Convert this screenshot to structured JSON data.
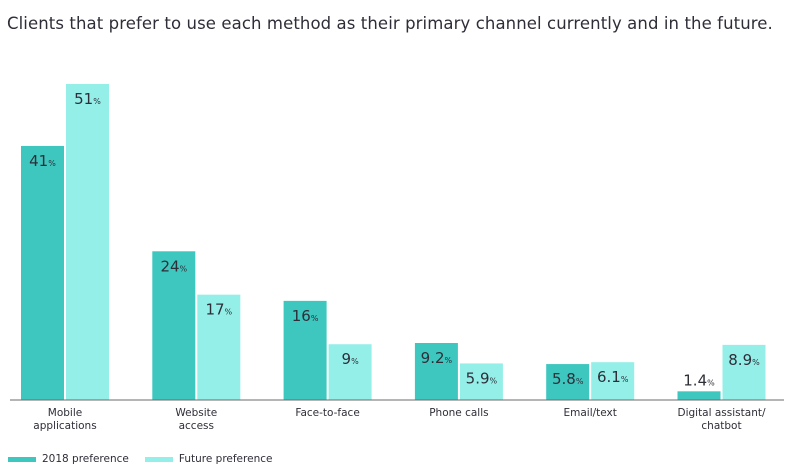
{
  "title": "Clients that prefer to use each method as their primary channel currently and in the future.",
  "colors": {
    "series_2018": "#3ec7bf",
    "series_future": "#93efe8",
    "text": "#2e2e38",
    "axis": "#6b6b6b"
  },
  "legend": [
    {
      "label": "2018 preference"
    },
    {
      "label": "Future preference"
    }
  ],
  "chart_data": {
    "type": "bar",
    "title": "Clients that prefer to use each method as their primary channel currently and in the future.",
    "categories": [
      [
        "Mobile",
        "applications"
      ],
      [
        "Website",
        "access"
      ],
      [
        "Face-to-face"
      ],
      [
        "Phone calls"
      ],
      [
        "Email/text"
      ],
      [
        "Digital assistant/",
        "chatbot"
      ]
    ],
    "series": [
      {
        "name": "2018 preference",
        "values": [
          41,
          24,
          16,
          9.2,
          5.8,
          1.4
        ],
        "labels": [
          "41",
          "24",
          "16",
          "9.2",
          "5.8",
          "1.4"
        ]
      },
      {
        "name": "Future preference",
        "values": [
          51,
          17,
          9,
          5.9,
          6.1,
          8.9
        ],
        "labels": [
          "51",
          "17",
          "9",
          "5.9",
          "6.1",
          "8.9"
        ]
      }
    ],
    "value_suffix": "%",
    "ylim": [
      0,
      51
    ],
    "grid": false,
    "legend_position": "bottom-left",
    "xlabel": "",
    "ylabel": ""
  }
}
